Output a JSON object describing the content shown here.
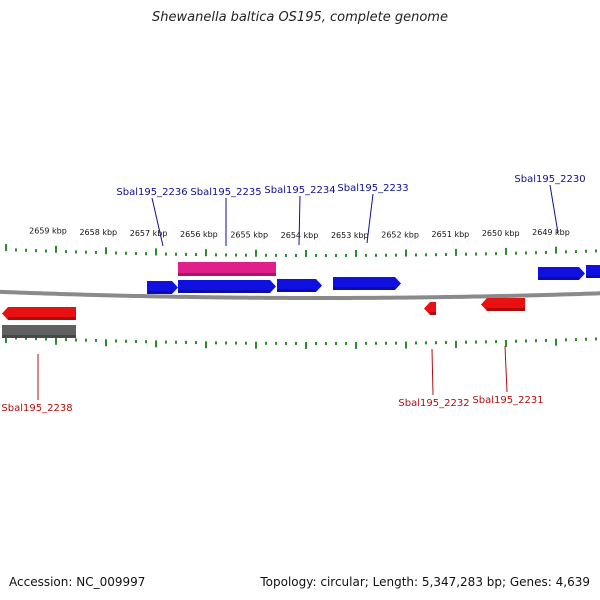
{
  "header": {
    "title": "Shewanella baltica OS195, complete genome"
  },
  "footer": {
    "accession": "Accession: NC_009997",
    "summary": "Topology: circular; Length: 5,347,283 bp; Genes: 4,639"
  },
  "colors": {
    "forward_gene": "#1010e0",
    "reverse_gene": "#e81010",
    "highlight": "#e0208a",
    "pseudo": "#606060",
    "backbone": "#8a8a8a",
    "ticks": "#2e8b2e",
    "forward_label": "#101090",
    "reverse_label": "#b01010"
  },
  "scale": {
    "unit": "kbp",
    "labels": [
      "2659 kbp",
      "2658 kbp",
      "2657 kbp",
      "2656 kbp",
      "2655 kbp",
      "2654 kbp",
      "2653 kbp",
      "2652 kbp",
      "2651 kbp",
      "2650 kbp",
      "2649 kbp"
    ]
  },
  "features": {
    "forward_strand": [
      {
        "type": "gene",
        "color": "forward_gene"
      },
      {
        "type": "gene",
        "color": "forward_gene"
      },
      {
        "type": "gene",
        "color": "forward_gene"
      },
      {
        "type": "gene",
        "color": "forward_gene"
      },
      {
        "type": "gene",
        "color": "forward_gene"
      },
      {
        "type": "gene",
        "color": "forward_gene"
      },
      {
        "type": "feature",
        "color": "highlight"
      }
    ],
    "reverse_strand": [
      {
        "type": "gene",
        "color": "reverse_gene"
      },
      {
        "type": "pseudo",
        "color": "pseudo"
      },
      {
        "type": "gene",
        "color": "reverse_gene"
      },
      {
        "type": "gene",
        "color": "reverse_gene"
      }
    ]
  },
  "gene_labels": {
    "forward": [
      "Sbal195_2236",
      "Sbal195_2235",
      "Sbal195_2234",
      "Sbal195_2233",
      "Sbal195_2230"
    ],
    "reverse": [
      "Sbal195_2238",
      "Sbal195_2232",
      "Sbal195_2231"
    ]
  }
}
